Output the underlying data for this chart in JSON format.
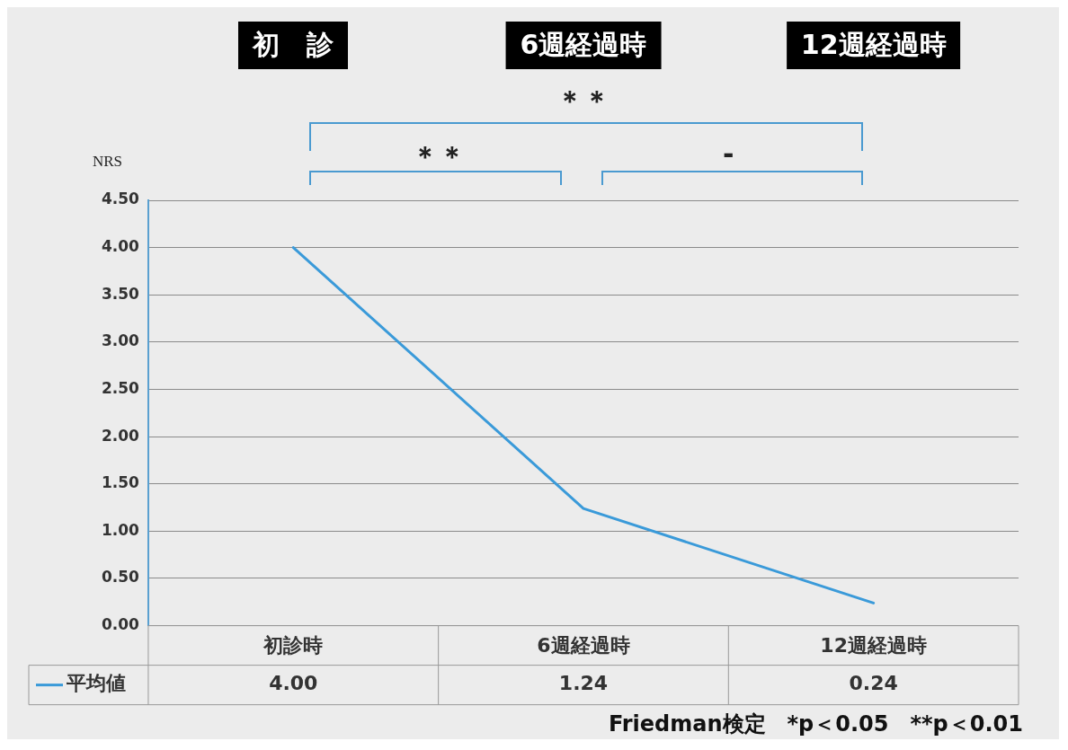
{
  "chart_data": {
    "type": "line",
    "ylabel": "NRS",
    "categories": [
      "初診時",
      "6週経過時",
      "12週経過時"
    ],
    "series": [
      {
        "name": "平均値",
        "color": "#3a9ad9",
        "values": [
          4.0,
          1.24,
          0.24
        ],
        "value_labels": [
          "4.00",
          "1.24",
          "0.24"
        ]
      }
    ],
    "ylim": [
      0,
      4.5
    ],
    "yticks": [
      {
        "value": 0,
        "label": "0.00"
      },
      {
        "value": 0.5,
        "label": "0.50"
      },
      {
        "value": 1,
        "label": "1.00"
      },
      {
        "value": 1.5,
        "label": "1.50"
      },
      {
        "value": 2,
        "label": "2.00"
      },
      {
        "value": 2.5,
        "label": "2.50"
      },
      {
        "value": 3,
        "label": "3.00"
      },
      {
        "value": 3.5,
        "label": "3.50"
      },
      {
        "value": 4,
        "label": "4.00"
      },
      {
        "value": 4.5,
        "label": "4.50"
      }
    ],
    "grid": "y",
    "legend": "bottom left",
    "marker": "none",
    "line_style": "solid",
    "annotations": [
      "初　診",
      "6週経過時",
      "12週経過時",
      "＊＊",
      "＊＊",
      "-",
      "Friedman検定　*p＜0.05　**p＜0.01"
    ]
  }
}
